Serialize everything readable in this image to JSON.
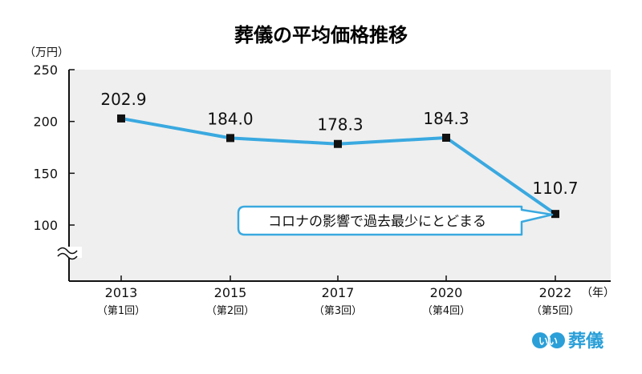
{
  "chart_data": {
    "type": "line",
    "title": "葬儀の平均価格推移",
    "ylabel": "（万円）",
    "xunit": "（年）",
    "ylim": [
      70,
      250
    ],
    "yticks": [
      250,
      200,
      150,
      100
    ],
    "categories": [
      "2013",
      "2015",
      "2017",
      "2020",
      "2022"
    ],
    "subcategories": [
      "（第1回）",
      "（第2回）",
      "（第3回）",
      "（第4回）",
      "（第5回）"
    ],
    "values": [
      202.9,
      184.0,
      178.3,
      184.3,
      110.7
    ],
    "data_labels": [
      "202.9",
      "184.0",
      "178.3",
      "184.3",
      "110.7"
    ],
    "grid": false,
    "axis_break": true,
    "line_color": "#3aa9e0",
    "plot_background": "#efefef",
    "annotation": "コロナの影響で過去最少にとどまる"
  },
  "brand": {
    "logo_prefix": "いい",
    "logo_name": "葬儀",
    "color": "#2a9fd8"
  }
}
